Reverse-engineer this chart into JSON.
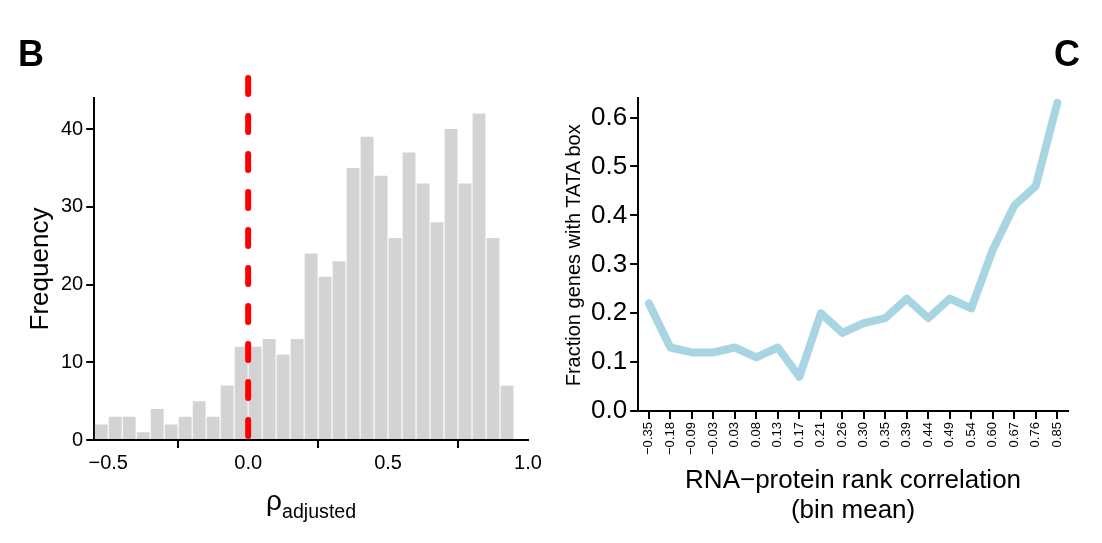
{
  "chart_data": [
    {
      "type": "histogram",
      "title": "B",
      "xlabel": "ρ$_{adjusted}$",
      "ylabel": "Frequency",
      "bins": [
        -0.55,
        -0.5,
        -0.45,
        -0.4,
        -0.35,
        -0.3,
        -0.25,
        -0.2,
        -0.15,
        -0.1,
        -0.05,
        0,
        0.05,
        0.1,
        0.15,
        0.2,
        0.25,
        0.3,
        0.35,
        0.4,
        0.45,
        0.5,
        0.55,
        0.6,
        0.65,
        0.7,
        0.75,
        0.8,
        0.85,
        0.9,
        0.95
      ],
      "values": [
        2,
        3,
        3,
        1,
        4,
        2,
        3,
        5,
        3,
        7,
        12,
        12,
        13,
        11,
        13,
        24,
        21,
        23,
        35,
        39,
        34,
        26,
        37,
        33,
        28,
        40,
        33,
        42,
        26,
        7
      ],
      "color": "#d3d3d3",
      "xlim": [
        -0.55,
        1.0
      ],
      "xticks": [
        {
          "value": -0.5,
          "label": "−0.5"
        },
        {
          "value": 0,
          "label": "0.0"
        },
        0.5,
        {
          "value": 1,
          "label": "1.0"
        }
      ],
      "ylim": [
        0,
        44
      ],
      "yticks": [
        0,
        10,
        20,
        30,
        40
      ],
      "ref_lines": [
        {
          "axis": "x",
          "value": 0,
          "color": "#ff0000",
          "line_style": "dashed"
        }
      ],
      "grid": false,
      "legend": false
    },
    {
      "type": "line",
      "title": "C",
      "xlabel": "RNA−protein rank correlation\n(bin mean)",
      "ylabel": "Fraction genes with TATA box",
      "categories": [
        "−0.35",
        "−0.18",
        "−0.09",
        "−0.03",
        "0.03",
        "0.08",
        "0.13",
        "0.17",
        "0.21",
        "0.26",
        "0.30",
        "0.35",
        "0.39",
        "0.44",
        "0.49",
        "0.54",
        "0.60",
        "0.67",
        "0.76",
        "0.85"
      ],
      "series": [
        {
          "color": "#a8d5e2",
          "values": [
            0.22,
            0.13,
            0.12,
            0.12,
            0.13,
            0.11,
            0.13,
            0.07,
            0.2,
            0.16,
            0.18,
            0.19,
            0.23,
            0.19,
            0.23,
            0.21,
            0.33,
            0.42,
            0.46,
            0.63
          ]
        }
      ],
      "ylim": [
        0,
        0.64
      ],
      "yticks": [
        {
          "value": 0,
          "label": "0.0"
        },
        0.1,
        0.2,
        0.3,
        0.4,
        0.5,
        0.6
      ],
      "grid": false,
      "legend": false
    }
  ]
}
